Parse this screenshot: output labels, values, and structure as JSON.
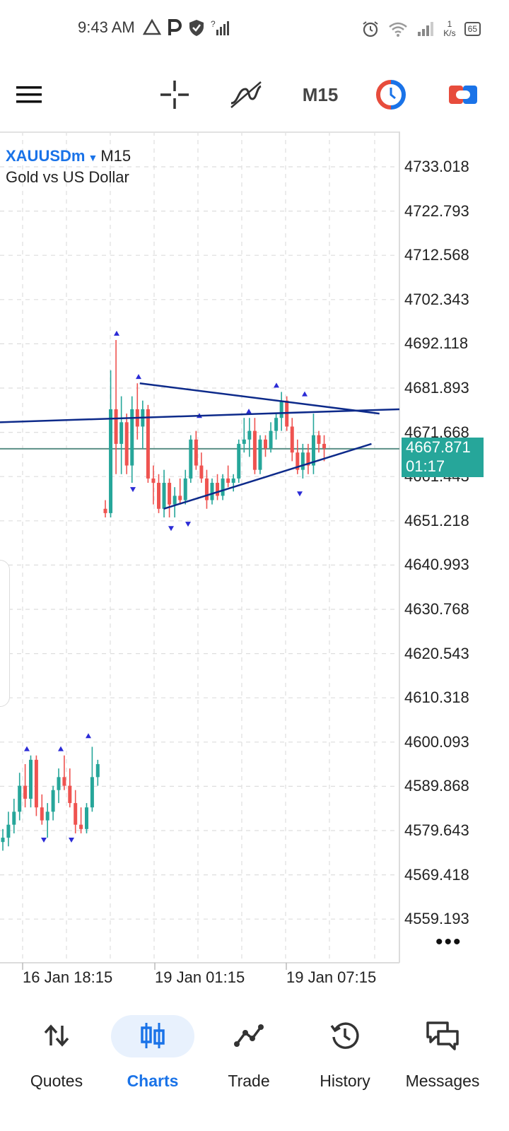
{
  "status_bar": {
    "time": "9:43 AM",
    "left_icons": [
      "warning-icon",
      "parking-icon",
      "shield-icon",
      "signal-question-icon"
    ],
    "speed_value": "1",
    "speed_unit": "K/s",
    "battery": "65"
  },
  "toolbar": {
    "timeframe": "M15"
  },
  "chart": {
    "symbol": "XAUUSDm",
    "timeframe": "M15",
    "description": "Gold vs US Dollar",
    "price_axis": [
      "4733.018",
      "4722.793",
      "4712.568",
      "4702.343",
      "4692.118",
      "4681.893",
      "4671.668",
      "4661.443",
      "4651.218",
      "4640.993",
      "4630.768",
      "4620.543",
      "4610.318",
      "4600.093",
      "4589.868",
      "4579.643",
      "4569.418",
      "4559.193"
    ],
    "time_axis": [
      "16 Jan 18:15",
      "19 Jan 01:15",
      "19 Jan 07:15"
    ],
    "current_price": "4667.871",
    "countdown": "01:17",
    "colors": {
      "bull": "#26a69a",
      "bear": "#ef5350",
      "trendline": "#0d2a8a",
      "price_line": "#5b8f86",
      "fractal": "#2b2bd6"
    }
  },
  "chart_data": {
    "type": "candlestick",
    "y_range": [
      4554,
      4737
    ],
    "candles_group_1": [
      {
        "o": 4577,
        "h": 4580,
        "l": 4575,
        "c": 4578
      },
      {
        "o": 4578,
        "h": 4584,
        "l": 4576,
        "c": 4581
      },
      {
        "o": 4581,
        "h": 4587,
        "l": 4579,
        "c": 4584
      },
      {
        "o": 4584,
        "h": 4593,
        "l": 4582,
        "c": 4590
      },
      {
        "o": 4590,
        "h": 4595,
        "l": 4585,
        "c": 4587
      },
      {
        "o": 4587,
        "h": 4597,
        "l": 4585,
        "c": 4596
      },
      {
        "o": 4596,
        "h": 4597,
        "l": 4583,
        "c": 4585
      },
      {
        "o": 4585,
        "h": 4588,
        "l": 4581,
        "c": 4582
      },
      {
        "o": 4582,
        "h": 4586,
        "l": 4578,
        "c": 4584
      },
      {
        "o": 4584,
        "h": 4590,
        "l": 4582,
        "c": 4589
      },
      {
        "o": 4589,
        "h": 4594,
        "l": 4586,
        "c": 4592
      },
      {
        "o": 4592,
        "h": 4597,
        "l": 4589,
        "c": 4590
      },
      {
        "o": 4590,
        "h": 4594,
        "l": 4585,
        "c": 4586
      },
      {
        "o": 4586,
        "h": 4589,
        "l": 4579,
        "c": 4581
      },
      {
        "o": 4581,
        "h": 4585,
        "l": 4579,
        "c": 4580
      },
      {
        "o": 4580,
        "h": 4586,
        "l": 4579,
        "c": 4585
      },
      {
        "o": 4585,
        "h": 4599,
        "l": 4584,
        "c": 4592
      },
      {
        "o": 4592,
        "h": 4596,
        "l": 4590,
        "c": 4595
      }
    ],
    "candles_group_2": [
      {
        "o": 4654,
        "h": 4656,
        "l": 4652,
        "c": 4653
      },
      {
        "o": 4653,
        "h": 4686,
        "l": 4652,
        "c": 4677
      },
      {
        "o": 4677,
        "h": 4693,
        "l": 4662,
        "c": 4669
      },
      {
        "o": 4669,
        "h": 4680,
        "l": 4662,
        "c": 4674
      },
      {
        "o": 4674,
        "h": 4676,
        "l": 4662,
        "c": 4664
      },
      {
        "o": 4664,
        "h": 4680,
        "l": 4660,
        "c": 4677
      },
      {
        "o": 4677,
        "h": 4683,
        "l": 4670,
        "c": 4673
      },
      {
        "o": 4673,
        "h": 4679,
        "l": 4668,
        "c": 4677
      },
      {
        "o": 4677,
        "h": 4678,
        "l": 4660,
        "c": 4661
      },
      {
        "o": 4661,
        "h": 4664,
        "l": 4655,
        "c": 4660
      },
      {
        "o": 4660,
        "h": 4662,
        "l": 4653,
        "c": 4654
      },
      {
        "o": 4654,
        "h": 4663,
        "l": 4652,
        "c": 4660
      },
      {
        "o": 4660,
        "h": 4661,
        "l": 4652,
        "c": 4655
      },
      {
        "o": 4655,
        "h": 4659,
        "l": 4652,
        "c": 4657
      },
      {
        "o": 4657,
        "h": 4661,
        "l": 4655,
        "c": 4656
      },
      {
        "o": 4656,
        "h": 4663,
        "l": 4655,
        "c": 4661
      },
      {
        "o": 4661,
        "h": 4671,
        "l": 4660,
        "c": 4670
      },
      {
        "o": 4670,
        "h": 4672,
        "l": 4663,
        "c": 4664
      },
      {
        "o": 4664,
        "h": 4667,
        "l": 4660,
        "c": 4661
      },
      {
        "o": 4661,
        "h": 4663,
        "l": 4654,
        "c": 4656
      },
      {
        "o": 4656,
        "h": 4661,
        "l": 4655,
        "c": 4660
      },
      {
        "o": 4660,
        "h": 4662,
        "l": 4656,
        "c": 4657
      },
      {
        "o": 4657,
        "h": 4662,
        "l": 4656,
        "c": 4661
      },
      {
        "o": 4661,
        "h": 4664,
        "l": 4659,
        "c": 4660
      },
      {
        "o": 4660,
        "h": 4662,
        "l": 4658,
        "c": 4661
      },
      {
        "o": 4661,
        "h": 4670,
        "l": 4660,
        "c": 4669
      },
      {
        "o": 4669,
        "h": 4675,
        "l": 4667,
        "c": 4670
      },
      {
        "o": 4670,
        "h": 4675,
        "l": 4666,
        "c": 4672
      },
      {
        "o": 4672,
        "h": 4675,
        "l": 4662,
        "c": 4663
      },
      {
        "o": 4663,
        "h": 4671,
        "l": 4662,
        "c": 4670
      },
      {
        "o": 4670,
        "h": 4671,
        "l": 4666,
        "c": 4668
      },
      {
        "o": 4668,
        "h": 4674,
        "l": 4667,
        "c": 4672
      },
      {
        "o": 4672,
        "h": 4676,
        "l": 4670,
        "c": 4675
      },
      {
        "o": 4675,
        "h": 4681,
        "l": 4672,
        "c": 4679
      },
      {
        "o": 4679,
        "h": 4680,
        "l": 4672,
        "c": 4673
      },
      {
        "o": 4673,
        "h": 4675,
        "l": 4665,
        "c": 4667
      },
      {
        "o": 4667,
        "h": 4670,
        "l": 4662,
        "c": 4663
      },
      {
        "o": 4663,
        "h": 4669,
        "l": 4661,
        "c": 4667
      },
      {
        "o": 4667,
        "h": 4669,
        "l": 4662,
        "c": 4664
      },
      {
        "o": 4664,
        "h": 4676,
        "l": 4662,
        "c": 4671
      },
      {
        "o": 4671,
        "h": 4672,
        "l": 4667,
        "c": 4669
      },
      {
        "o": 4669,
        "h": 4671,
        "l": 4665,
        "c": 4668
      }
    ],
    "trendlines": [
      {
        "from": [
          0,
          4674
        ],
        "to": [
          1,
          4677
        ]
      },
      {
        "from": [
          0.35,
          4683
        ],
        "to": [
          0.95,
          4676
        ]
      },
      {
        "from": [
          0.41,
          4654
        ],
        "to": [
          0.93,
          4669
        ]
      }
    ]
  },
  "bottom_nav": [
    {
      "label": "Quotes",
      "icon": "quotes-arrows-icon",
      "active": false
    },
    {
      "label": "Charts",
      "icon": "charts-candles-icon",
      "active": true
    },
    {
      "label": "Trade",
      "icon": "trade-line-icon",
      "active": false
    },
    {
      "label": "History",
      "icon": "history-clock-icon",
      "active": false
    },
    {
      "label": "Messages",
      "icon": "messages-bubble-icon",
      "active": false
    }
  ]
}
